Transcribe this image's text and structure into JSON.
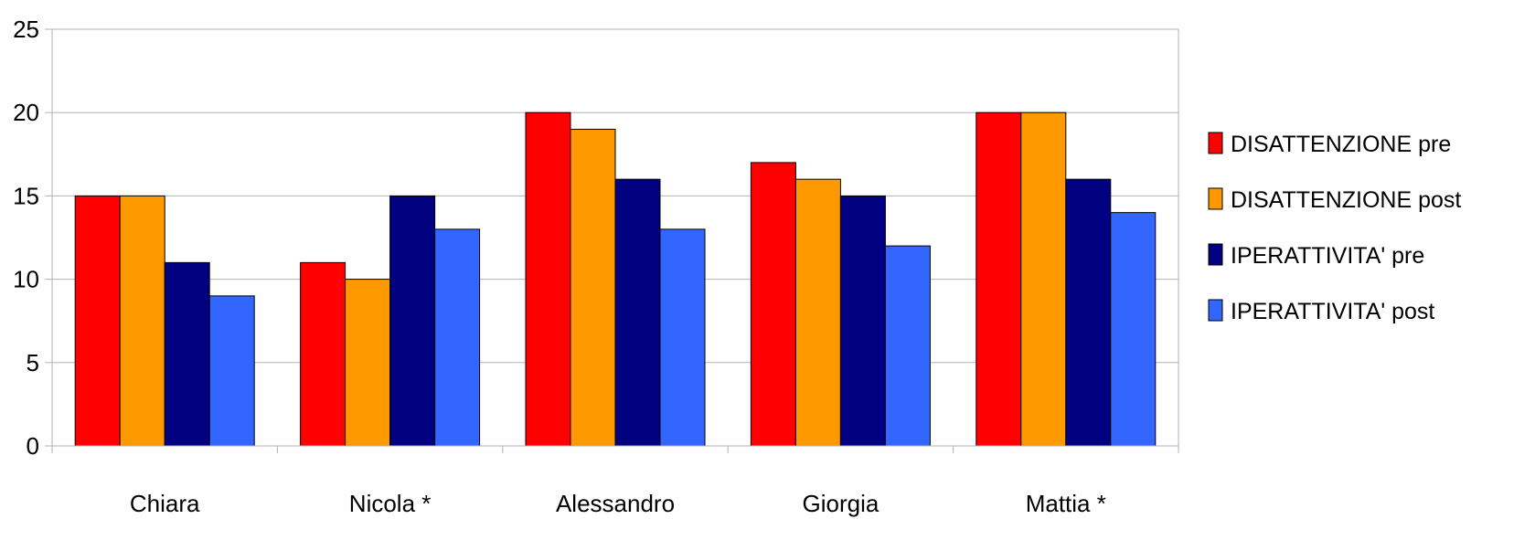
{
  "chart_data": {
    "type": "bar",
    "categories": [
      "Chiara",
      "Nicola *",
      "Alessandro",
      "Giorgia",
      "Mattia *"
    ],
    "series": [
      {
        "name": "DISATTENZIONE pre",
        "color": "#ff0000",
        "values": [
          15,
          11,
          20,
          17,
          20
        ]
      },
      {
        "name": "DISATTENZIONE post",
        "color": "#ff9900",
        "values": [
          15,
          10,
          19,
          16,
          20
        ]
      },
      {
        "name": "IPERATTIVITA' pre",
        "color": "#000080",
        "values": [
          11,
          15,
          16,
          15,
          16
        ]
      },
      {
        "name": "IPERATTIVITA' post",
        "color": "#3366ff",
        "values": [
          9,
          13,
          13,
          12,
          14
        ]
      }
    ],
    "ylim": [
      0,
      25
    ],
    "yticks": [
      0,
      5,
      10,
      15,
      20,
      25
    ],
    "grid": true,
    "legend": "right",
    "title": "",
    "xlabel": "",
    "ylabel": ""
  }
}
